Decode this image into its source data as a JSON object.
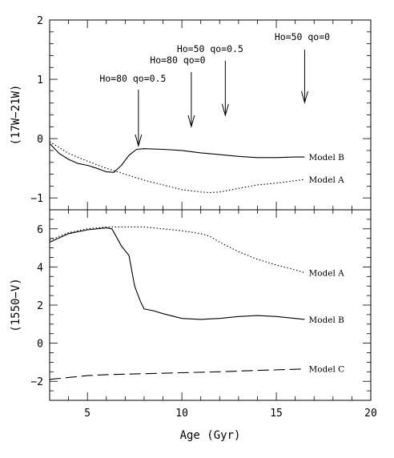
{
  "chart_data": [
    {
      "type": "line",
      "panel": "top",
      "ylabel": "(17W−21W)",
      "xlim": [
        3,
        20
      ],
      "ylim": [
        -1.2,
        2
      ],
      "yticks": [
        {
          "v": -1,
          "label": "−1"
        },
        {
          "v": 0,
          "label": "0"
        },
        {
          "v": 1,
          "label": "1"
        },
        {
          "v": 2,
          "label": "2"
        }
      ],
      "series": [
        {
          "name": "Model B",
          "style": "solid",
          "x": [
            3,
            3.5,
            4,
            4.5,
            5,
            5.5,
            6,
            6.4,
            6.8,
            7.2,
            7.6,
            8,
            9,
            10,
            11,
            12,
            13,
            14,
            15,
            16,
            16.5
          ],
          "y": [
            -0.08,
            -0.25,
            -0.35,
            -0.42,
            -0.45,
            -0.5,
            -0.56,
            -0.57,
            -0.45,
            -0.28,
            -0.18,
            -0.17,
            -0.18,
            -0.2,
            -0.24,
            -0.27,
            -0.3,
            -0.32,
            -0.32,
            -0.31,
            -0.31
          ]
        },
        {
          "name": "Model A",
          "style": "dotted",
          "x": [
            3,
            3.5,
            4,
            5,
            6,
            7,
            8,
            9,
            10,
            11,
            11.5,
            12,
            13,
            14,
            15,
            16,
            16.5
          ],
          "y": [
            -0.05,
            -0.15,
            -0.25,
            -0.38,
            -0.5,
            -0.6,
            -0.7,
            -0.78,
            -0.86,
            -0.9,
            -0.91,
            -0.9,
            -0.84,
            -0.78,
            -0.75,
            -0.71,
            -0.69
          ]
        }
      ],
      "annotations": [
        {
          "text": "Ho=80  qo=0.5",
          "x": 7.7
        },
        {
          "text": "Ho=80  qo=0",
          "x": 10.5
        },
        {
          "text": "Ho=50  qo=0.5",
          "x": 12.3
        },
        {
          "text": "Ho=50  qo=0",
          "x": 16.5
        }
      ]
    },
    {
      "type": "line",
      "panel": "bottom",
      "xlabel": "Age  (Gyr)",
      "ylabel": "(1550−V)",
      "xlim": [
        3,
        20
      ],
      "ylim": [
        -3,
        7
      ],
      "xticks": [
        {
          "v": 5,
          "label": "5"
        },
        {
          "v": 10,
          "label": "10"
        },
        {
          "v": 15,
          "label": "15"
        },
        {
          "v": 20,
          "label": "20"
        }
      ],
      "yticks": [
        {
          "v": -2,
          "label": "−2"
        },
        {
          "v": 0,
          "label": "0"
        },
        {
          "v": 2,
          "label": "2"
        },
        {
          "v": 4,
          "label": "4"
        },
        {
          "v": 6,
          "label": "6"
        }
      ],
      "series": [
        {
          "name": "Model A",
          "style": "dotted",
          "x": [
            3,
            4,
            5,
            6,
            7,
            8,
            9,
            10,
            11,
            11.5,
            12,
            13,
            14,
            15,
            16,
            16.5
          ],
          "y": [
            5.4,
            5.8,
            6.0,
            6.1,
            6.1,
            6.1,
            6.0,
            5.9,
            5.75,
            5.6,
            5.3,
            4.8,
            4.4,
            4.1,
            3.85,
            3.7
          ]
        },
        {
          "name": "Model B",
          "style": "solid",
          "x": [
            3,
            4,
            5,
            6,
            6.3,
            6.8,
            7.2,
            7.5,
            7.8,
            8,
            8.5,
            9,
            10,
            11,
            12,
            13,
            14,
            15,
            16,
            16.5
          ],
          "y": [
            5.3,
            5.75,
            5.95,
            6.05,
            6.0,
            5.1,
            4.6,
            3.0,
            2.2,
            1.8,
            1.7,
            1.55,
            1.3,
            1.25,
            1.3,
            1.4,
            1.45,
            1.4,
            1.3,
            1.25
          ]
        },
        {
          "name": "Model C",
          "style": "dashed",
          "x": [
            3,
            4,
            5,
            6,
            8,
            10,
            12,
            14,
            16,
            16.5
          ],
          "y": [
            -1.9,
            -1.8,
            -1.7,
            -1.65,
            -1.6,
            -1.55,
            -1.5,
            -1.43,
            -1.37,
            -1.35
          ]
        }
      ]
    }
  ]
}
